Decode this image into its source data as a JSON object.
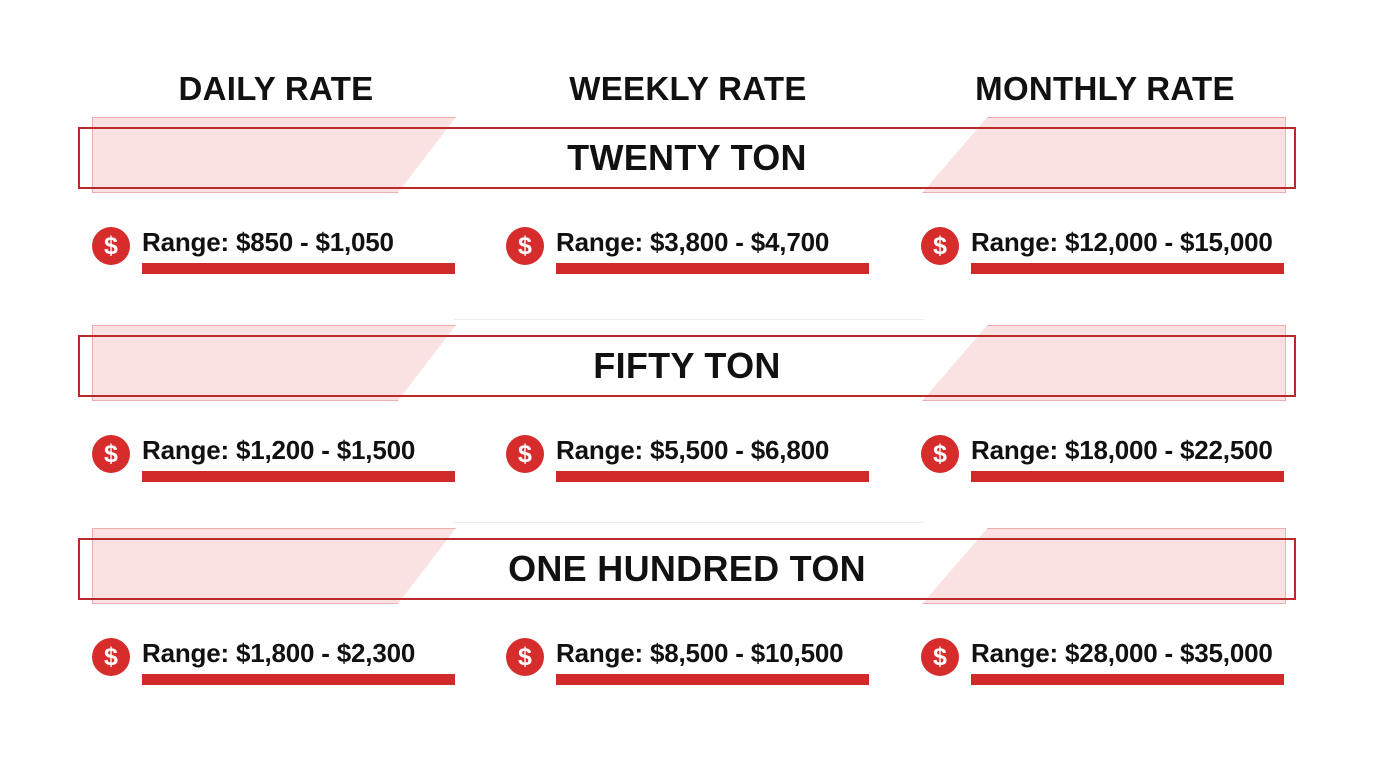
{
  "headers": {
    "daily": "DAILY RATE",
    "weekly": "WEEKLY RATE",
    "monthly": "MONTHLY RATE"
  },
  "tiers": [
    {
      "title": "TWENTY TON",
      "daily": "Range: $850 - $1,050",
      "weekly": "Range: $3,800 - $4,700",
      "monthly": "Range: $12,000 - $15,000"
    },
    {
      "title": "FIFTY TON",
      "daily": "Range: $1,200 - $1,500",
      "weekly": "Range: $5,500 - $6,800",
      "monthly": "Range: $18,000 - $22,500"
    },
    {
      "title": "ONE HUNDRED TON",
      "daily": "Range: $1,800 - $2,300",
      "weekly": "Range: $8,500 - $10,500",
      "monthly": "Range: $28,000 - $35,000"
    }
  ],
  "icon": {
    "name": "dollar-coin-icon",
    "glyph": "$"
  },
  "colors": {
    "accent": "#d22a2a",
    "frame": "#b92a2a",
    "tint": "#f6d3d3",
    "text": "#111111"
  }
}
